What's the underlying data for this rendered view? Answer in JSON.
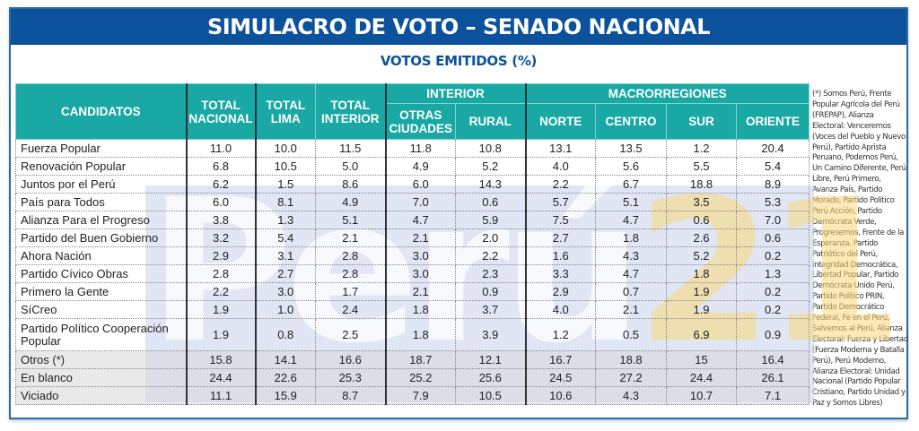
{
  "header": {
    "title": "SIMULACRO DE VOTO – SENADO NACIONAL",
    "subtitle": "VOTOS EMITIDOS (%)"
  },
  "watermark": {
    "text": "Perú",
    "number": "21"
  },
  "colors": {
    "title_bar": "#0b519c",
    "header_teal": "#1aa8a4",
    "subtitle_text": "#0b519c"
  },
  "table": {
    "group_headers": {
      "interior": "INTERIOR",
      "macrorregiones": "MACRORREGIONES"
    },
    "columns": {
      "candidatos": "CANDIDATOS",
      "total_nacional": "TOTAL NACIONAL",
      "total_lima": "TOTAL LIMA",
      "total_interior": "TOTAL INTERIOR",
      "otras_ciudades": "OTRAS CIUDADES",
      "rural": "RURAL",
      "norte": "NORTE",
      "centro": "CENTRO",
      "sur": "SUR",
      "oriente": "ORIENTE"
    },
    "rows": [
      {
        "name": "Fuerza Popular",
        "values": [
          "11.0",
          "10.0",
          "11.5",
          "11.8",
          "10.8",
          "13.1",
          "13.5",
          "1.2",
          "20.4"
        ]
      },
      {
        "name": "Renovación Popular",
        "values": [
          "6.8",
          "10.5",
          "5.0",
          "4.9",
          "5.2",
          "4.0",
          "5.6",
          "5.5",
          "5.4"
        ]
      },
      {
        "name": "Juntos por el Perú",
        "values": [
          "6.2",
          "1.5",
          "8.6",
          "6.0",
          "14.3",
          "2.2",
          "6.7",
          "18.8",
          "8.9"
        ]
      },
      {
        "name": "País para Todos",
        "values": [
          "6.0",
          "8.1",
          "4.9",
          "7.0",
          "0.6",
          "5.7",
          "5.1",
          "3.5",
          "5.3"
        ]
      },
      {
        "name": "Alianza Para el Progreso",
        "values": [
          "3.8",
          "1.3",
          "5.1",
          "4.7",
          "5.9",
          "7.5",
          "4.7",
          "0.6",
          "7.0"
        ]
      },
      {
        "name": "Partido del Buen Gobierno",
        "values": [
          "3.2",
          "5.4",
          "2.1",
          "2.1",
          "2.0",
          "2.7",
          "1.8",
          "2.6",
          "0.6"
        ]
      },
      {
        "name": "Ahora Nación",
        "values": [
          "2.9",
          "3.1",
          "2.8",
          "3.0",
          "2.2",
          "1.6",
          "4.3",
          "5.2",
          "0.2"
        ]
      },
      {
        "name": "Partido Cívico Obras",
        "values": [
          "2.8",
          "2.7",
          "2.8",
          "3.0",
          "2.3",
          "3.3",
          "4.7",
          "1.8",
          "1.3"
        ]
      },
      {
        "name": "Primero la Gente",
        "values": [
          "2.2",
          "3.0",
          "1.7",
          "2.1",
          "0.9",
          "2.9",
          "0.7",
          "1.9",
          "0.2"
        ]
      },
      {
        "name": "SíCreo",
        "values": [
          "1.9",
          "1.0",
          "2.4",
          "1.8",
          "3.7",
          "4.0",
          "2.1",
          "1.9",
          "0.2"
        ]
      },
      {
        "name": "Partido Político Cooperación Popular",
        "values": [
          "1.9",
          "0.8",
          "2.5",
          "1.8",
          "3.9",
          "1.2",
          "0.5",
          "6.9",
          "0.9"
        ]
      },
      {
        "name": "Otros (*)",
        "values": [
          "15.8",
          "14.1",
          "16.6",
          "18.7",
          "12.1",
          "16.7",
          "18.8",
          "15",
          "16.4"
        ]
      },
      {
        "name": "En blanco",
        "values": [
          "24.4",
          "22.6",
          "25.3",
          "25.2",
          "25.6",
          "24.5",
          "27.2",
          "24.4",
          "26.1"
        ]
      },
      {
        "name": "Viciado",
        "values": [
          "11.1",
          "15.9",
          "8.7",
          "7.9",
          "10.5",
          "10.6",
          "4.3",
          "10.7",
          "7.1"
        ]
      }
    ]
  },
  "footnote": "(*) Somos Perú, Frente Popular Agrícola del Perú (FREPAP), Alianza Electoral: Venceremos (Voces del Pueblo y Nuevo Perú), Partido Aprista Peruano, Podemos Perú, Un Camino Diferente, Perú Libre, Perú Primero, Avanza País, Partido Morado, Partido Político Perú Acción, Partido Demócrata Verde, Progresemos, Frente de la Esperanza, Partido Patriótico del Perú, Integridad Democrática, Libertad Popular, Partido Demócrata Unido Perú, Partido Político PRIN, Partido Democrático Federal, Fe en el Perú, Salvemos al Perú, Alianza Electoral: Fuerza y Libertad (Fuerza Moderna y Batalla Perú), Perú Moderno, Alianza Electoral: Unidad Nacional (Partido Popular Cristiano, Partido Unidad y Paz y Somos Libres)",
  "chart_data": {
    "type": "table",
    "title": "SIMULACRO DE VOTO – SENADO NACIONAL",
    "subtitle": "VOTOS EMITIDOS (%)",
    "column_groups": [
      {
        "label": "INTERIOR",
        "columns": [
          "OTRAS CIUDADES",
          "RURAL"
        ]
      },
      {
        "label": "MACRORREGIONES",
        "columns": [
          "NORTE",
          "CENTRO",
          "SUR",
          "ORIENTE"
        ]
      }
    ],
    "columns": [
      "CANDIDATOS",
      "TOTAL NACIONAL",
      "TOTAL LIMA",
      "TOTAL INTERIOR",
      "OTRAS CIUDADES",
      "RURAL",
      "NORTE",
      "CENTRO",
      "SUR",
      "ORIENTE"
    ],
    "rows": [
      [
        "Fuerza Popular",
        11.0,
        10.0,
        11.5,
        11.8,
        10.8,
        13.1,
        13.5,
        1.2,
        20.4
      ],
      [
        "Renovación Popular",
        6.8,
        10.5,
        5.0,
        4.9,
        5.2,
        4.0,
        5.6,
        5.5,
        5.4
      ],
      [
        "Juntos por el Perú",
        6.2,
        1.5,
        8.6,
        6.0,
        14.3,
        2.2,
        6.7,
        18.8,
        8.9
      ],
      [
        "País para Todos",
        6.0,
        8.1,
        4.9,
        7.0,
        0.6,
        5.7,
        5.1,
        3.5,
        5.3
      ],
      [
        "Alianza Para el Progreso",
        3.8,
        1.3,
        5.1,
        4.7,
        5.9,
        7.5,
        4.7,
        0.6,
        7.0
      ],
      [
        "Partido del Buen Gobierno",
        3.2,
        5.4,
        2.1,
        2.1,
        2.0,
        2.7,
        1.8,
        2.6,
        0.6
      ],
      [
        "Ahora Nación",
        2.9,
        3.1,
        2.8,
        3.0,
        2.2,
        1.6,
        4.3,
        5.2,
        0.2
      ],
      [
        "Partido Cívico Obras",
        2.8,
        2.7,
        2.8,
        3.0,
        2.3,
        3.3,
        4.7,
        1.8,
        1.3
      ],
      [
        "Primero la Gente",
        2.2,
        3.0,
        1.7,
        2.1,
        0.9,
        2.9,
        0.7,
        1.9,
        0.2
      ],
      [
        "SíCreo",
        1.9,
        1.0,
        2.4,
        1.8,
        3.7,
        4.0,
        2.1,
        1.9,
        0.2
      ],
      [
        "Partido Político Cooperación Popular",
        1.9,
        0.8,
        2.5,
        1.8,
        3.9,
        1.2,
        0.5,
        6.9,
        0.9
      ],
      [
        "Otros (*)",
        15.8,
        14.1,
        16.6,
        18.7,
        12.1,
        16.7,
        18.8,
        15,
        16.4
      ],
      [
        "En blanco",
        24.4,
        22.6,
        25.3,
        25.2,
        25.6,
        24.5,
        27.2,
        24.4,
        26.1
      ],
      [
        "Viciado",
        11.1,
        15.9,
        8.7,
        7.9,
        10.5,
        10.6,
        4.3,
        10.7,
        7.1
      ]
    ]
  }
}
